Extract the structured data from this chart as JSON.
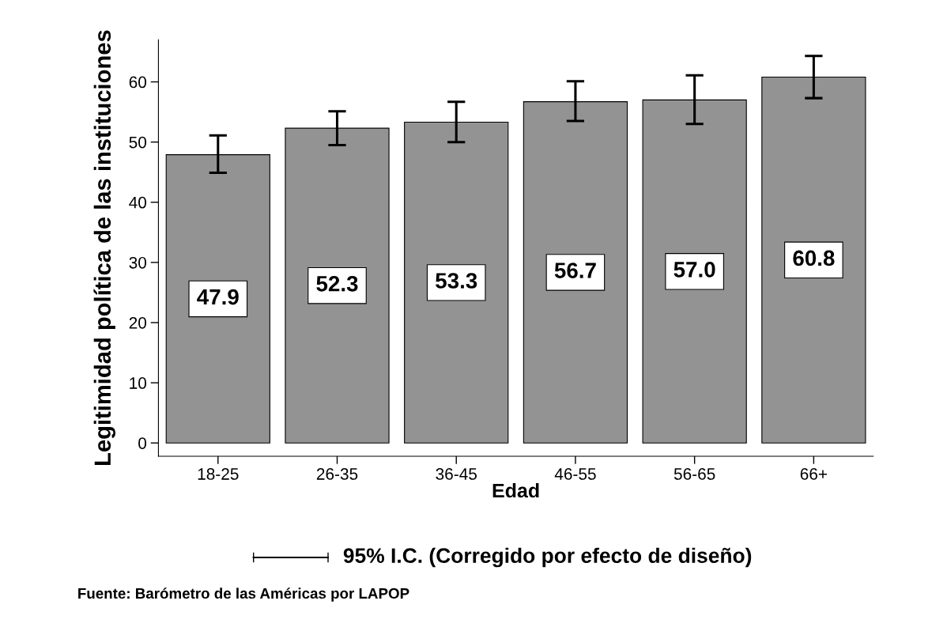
{
  "chart_data": {
    "type": "bar",
    "xlabel": "Edad",
    "ylabel": "Legitimidad política de las instituciones",
    "categories": [
      "18-25",
      "26-35",
      "36-45",
      "46-55",
      "56-65",
      "66+"
    ],
    "values": [
      47.9,
      52.3,
      53.3,
      56.7,
      57.0,
      60.8
    ],
    "errors": [
      [
        44.9,
        51.1
      ],
      [
        49.5,
        55.1
      ],
      [
        50.0,
        56.7
      ],
      [
        53.5,
        60.1
      ],
      [
        53.0,
        61.1
      ],
      [
        57.3,
        64.3
      ]
    ],
    "color": "#939393",
    "ylim": [
      -2.2,
      67
    ],
    "yticks": [
      0,
      10,
      20,
      30,
      40,
      50,
      60
    ],
    "value_labels": [
      "47.9",
      "52.3",
      "53.3",
      "56.7",
      "57.0",
      "60.8"
    ],
    "grid": false,
    "legend": false,
    "annotations": [
      "95% I.C. (Corregido por efecto de diseño)",
      "Fuente: Barómetro de las Américas por LAPOP"
    ]
  }
}
